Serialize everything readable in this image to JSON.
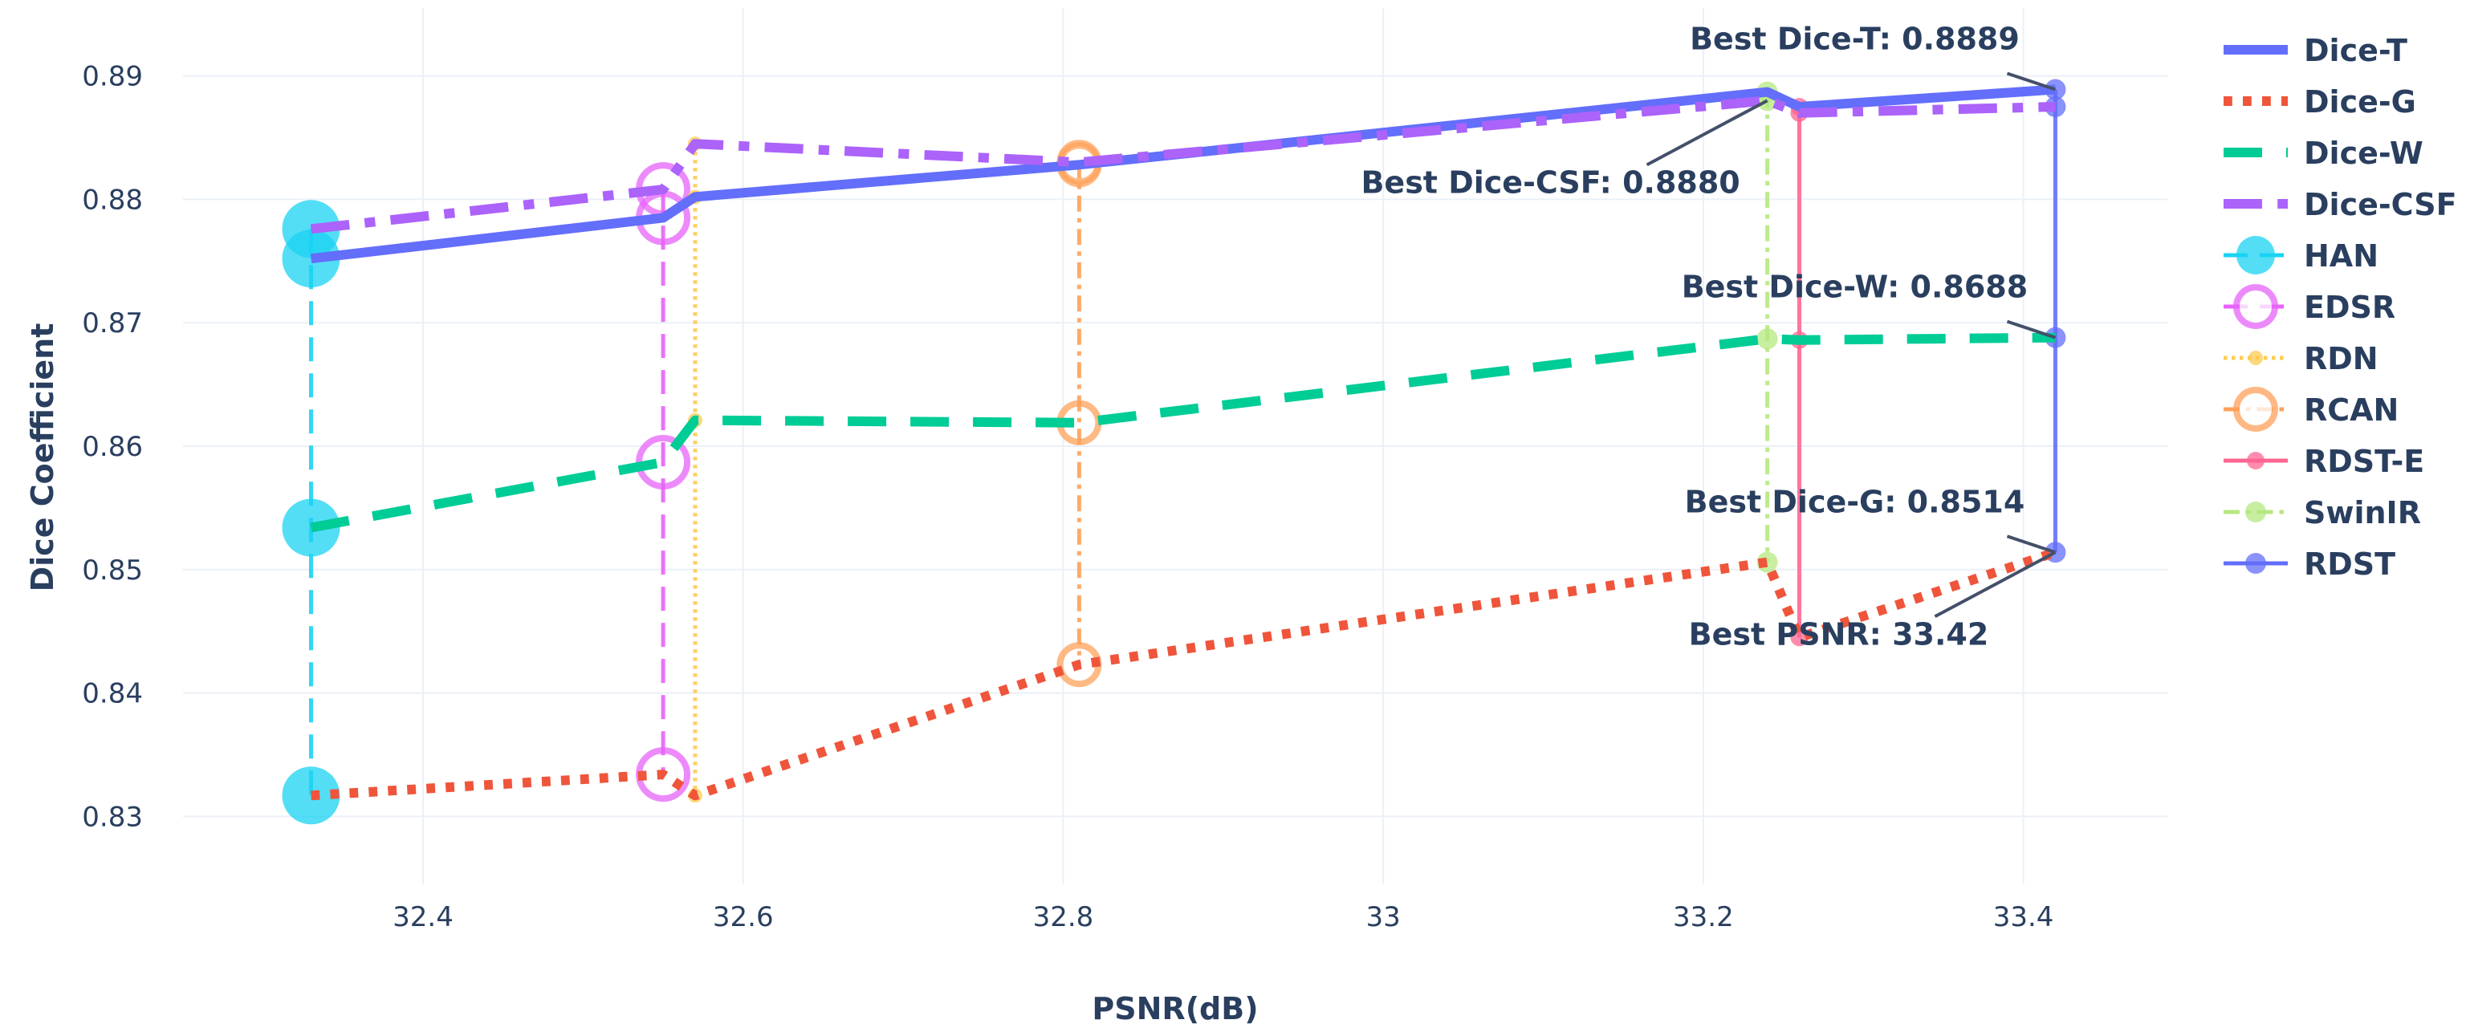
{
  "chart_data": {
    "type": "line",
    "xlabel": "PSNR(dB)",
    "ylabel": "Dice Coefficient",
    "xlim": [
      32.25,
      33.49
    ],
    "ylim": [
      0.8245,
      0.8955
    ],
    "grid": true,
    "legend_position": "right",
    "x_ticks": [
      32.4,
      32.6,
      32.8,
      33,
      33.2,
      33.4
    ],
    "x_tick_labels": [
      "32.4",
      "32.6",
      "32.8",
      "33",
      "33.2",
      "33.4"
    ],
    "y_ticks": [
      0.83,
      0.84,
      0.85,
      0.86,
      0.87,
      0.88,
      0.89
    ],
    "y_tick_labels": [
      "0.83",
      "0.84",
      "0.85",
      "0.86",
      "0.87",
      "0.88",
      "0.89"
    ],
    "dice_series": [
      {
        "name": "Dice-T",
        "color": "#636efa",
        "dash": "solid",
        "width": 12,
        "x": [
          32.33,
          32.55,
          32.57,
          32.81,
          33.24,
          33.26,
          33.42
        ],
        "y": [
          0.8752,
          0.8785,
          0.8802,
          0.8828,
          0.8887,
          0.8875,
          0.8889
        ]
      },
      {
        "name": "Dice-G",
        "color": "#ef553b",
        "dash": "dot",
        "width": 12,
        "x": [
          32.33,
          32.55,
          32.57,
          32.81,
          33.24,
          33.26,
          33.42
        ],
        "y": [
          0.8317,
          0.8334,
          0.8317,
          0.8423,
          0.8506,
          0.8445,
          0.8514
        ]
      },
      {
        "name": "Dice-W",
        "color": "#00cc96",
        "dash": "dash",
        "width": 12,
        "x": [
          32.33,
          32.55,
          32.57,
          32.81,
          33.24,
          33.26,
          33.42
        ],
        "y": [
          0.8534,
          0.8587,
          0.8621,
          0.8619,
          0.8687,
          0.8686,
          0.8688
        ]
      },
      {
        "name": "Dice-CSF",
        "color": "#ab63fa",
        "dash": "dashdot",
        "width": 12,
        "x": [
          32.33,
          32.55,
          32.57,
          32.81,
          33.24,
          33.26,
          33.42
        ],
        "y": [
          0.8776,
          0.8808,
          0.8845,
          0.883,
          0.888,
          0.887,
          0.8875
        ]
      }
    ],
    "method_series": [
      {
        "name": "HAN",
        "color": "#19d3f3",
        "dash": "longdash",
        "marker": "filled",
        "r": 36,
        "x": 32.33,
        "y": [
          0.8776,
          0.8752,
          0.8534,
          0.8317
        ]
      },
      {
        "name": "EDSR",
        "color": "#e763fa",
        "dash": "longdash",
        "marker": "open",
        "r": 30,
        "x": 32.55,
        "y": [
          0.8808,
          0.8785,
          0.8587,
          0.8334
        ]
      },
      {
        "name": "RDN",
        "color": "#fecb52",
        "dash": "dot",
        "marker": "filled",
        "r": 9,
        "x": 32.57,
        "y": [
          0.8845,
          0.8802,
          0.8621,
          0.8317
        ]
      },
      {
        "name": "RCAN",
        "color": "#ffa15a",
        "dash": "dashdot",
        "marker": "open",
        "r": 24,
        "x": 32.81,
        "y": [
          0.883,
          0.8828,
          0.8619,
          0.8423
        ]
      },
      {
        "name": "RDST-E",
        "color": "#ff6692",
        "dash": "solid",
        "marker": "filled",
        "r": 11,
        "x": 33.26,
        "y": [
          0.8875,
          0.887,
          0.8686,
          0.8445
        ]
      },
      {
        "name": "SwinIR",
        "color": "#b6e880",
        "dash": "dashdot",
        "marker": "filled",
        "r": 13,
        "x": 33.24,
        "y": [
          0.8887,
          0.888,
          0.8687,
          0.8506
        ]
      },
      {
        "name": "RDST",
        "color": "#636efa",
        "dash": "solid",
        "marker": "filled",
        "r": 13,
        "x": 33.42,
        "y": [
          0.8889,
          0.8875,
          0.8688,
          0.8514
        ]
      }
    ],
    "annotations": [
      {
        "text": "Best Dice-T: 0.8889",
        "x": 33.42,
        "y": 0.8889,
        "anchor": "upper-left"
      },
      {
        "text": "Best Dice-CSF: 0.8880",
        "x": 33.24,
        "y": 0.888,
        "anchor": "lower-left"
      },
      {
        "text": "Best Dice-W: 0.8688",
        "x": 33.42,
        "y": 0.8688,
        "anchor": "upper-left"
      },
      {
        "text": "Best Dice-G: 0.8514",
        "x": 33.42,
        "y": 0.8514,
        "anchor": "upper-left"
      },
      {
        "text": "Best PSNR: 33.42",
        "x": 33.42,
        "y": 0.8514,
        "anchor": "lower-left"
      }
    ]
  }
}
